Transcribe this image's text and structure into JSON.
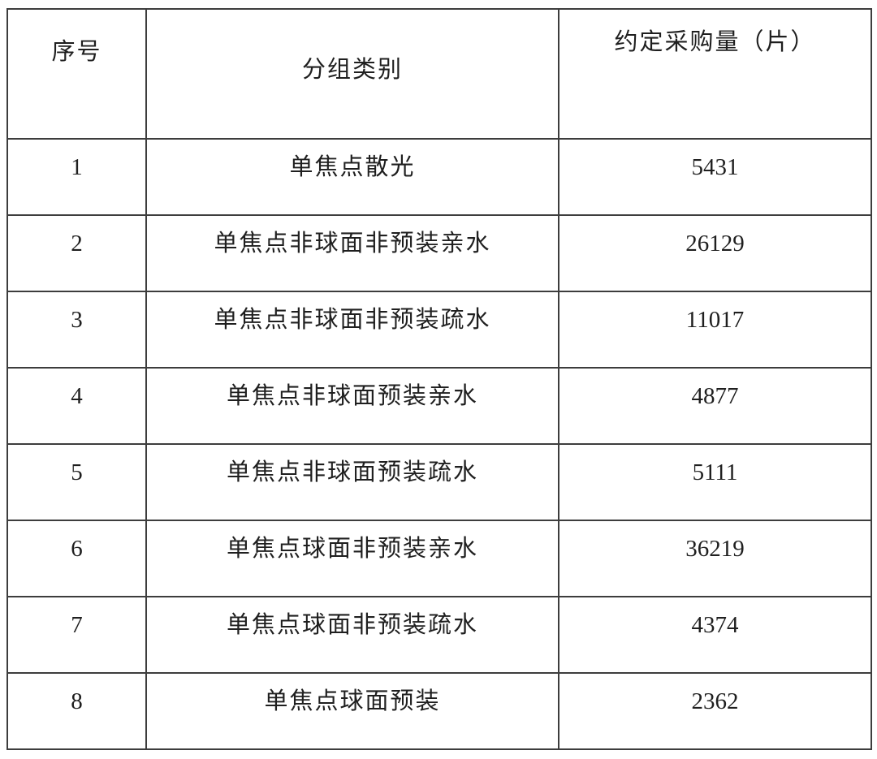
{
  "table": {
    "name": "agreed-procurement-quantity-table",
    "columns": [
      {
        "key": "index",
        "label": "序号"
      },
      {
        "key": "category",
        "label": "分组类别"
      },
      {
        "key": "quantity",
        "label": "约定采购量（片）"
      }
    ],
    "rows": [
      {
        "index": "1",
        "category": "单焦点散光",
        "quantity": "5431"
      },
      {
        "index": "2",
        "category": "单焦点非球面非预装亲水",
        "quantity": "26129"
      },
      {
        "index": "3",
        "category": "单焦点非球面非预装疏水",
        "quantity": "11017"
      },
      {
        "index": "4",
        "category": "单焦点非球面预装亲水",
        "quantity": "4877"
      },
      {
        "index": "5",
        "category": "单焦点非球面预装疏水",
        "quantity": "5111"
      },
      {
        "index": "6",
        "category": "单焦点球面非预装亲水",
        "quantity": "36219"
      },
      {
        "index": "7",
        "category": "单焦点球面非预装疏水",
        "quantity": "4374"
      },
      {
        "index": "8",
        "category": "单焦点球面预装",
        "quantity": "2362"
      }
    ],
    "colors": {
      "border": "#3d3d3d",
      "text": "#1f1f1f",
      "background": "#ffffff"
    }
  }
}
